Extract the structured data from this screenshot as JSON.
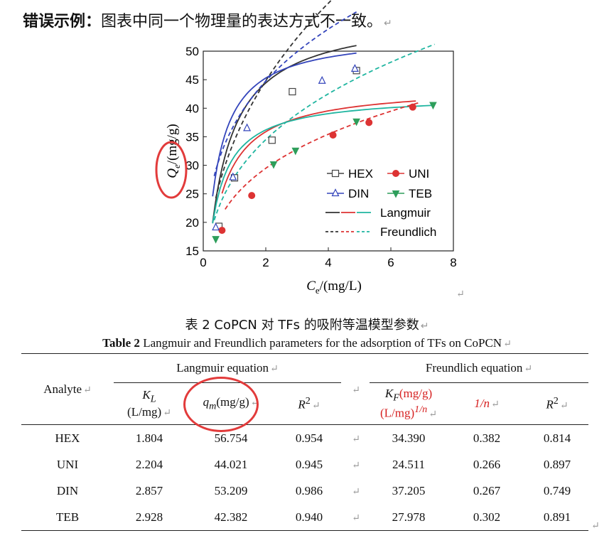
{
  "heading": {
    "bold": "错误示例：",
    "text": "图表中同一个物理量的表达方式不一致。"
  },
  "chart_data": {
    "type": "scatter",
    "xlabel_var": "C",
    "xlabel_sub": "e",
    "xlabel_unit": "/(mg/L)",
    "ylabel_var": "Q",
    "ylabel_sub": "e",
    "ylabel_unit": "/(mg/g)",
    "xlim": [
      0,
      8
    ],
    "ylim": [
      15,
      50
    ],
    "xticks": [
      0,
      2,
      4,
      6,
      8
    ],
    "yticks": [
      15,
      20,
      25,
      30,
      35,
      40,
      45,
      50
    ],
    "grid": false,
    "legend_position": "bottom-right",
    "series": [
      {
        "name": "HEX",
        "marker": "square",
        "color": "#444444",
        "x": [
          0.5,
          1.0,
          2.2,
          2.85,
          4.9
        ],
        "y": [
          19.3,
          27.8,
          34.4,
          42.9,
          46.6
        ]
      },
      {
        "name": "UNI",
        "marker": "circle",
        "color": "#dd3333",
        "x": [
          0.6,
          1.55,
          4.15,
          5.3,
          6.7
        ],
        "y": [
          18.6,
          24.7,
          35.3,
          37.5,
          40.2
        ]
      },
      {
        "name": "DIN",
        "marker": "triangle-up",
        "color": "#3344bb",
        "x": [
          0.4,
          0.95,
          1.4,
          3.8,
          4.85
        ],
        "y": [
          19.1,
          27.9,
          36.5,
          44.8,
          46.9
        ]
      },
      {
        "name": "TEB",
        "marker": "triangle-down",
        "color": "#2e9e5b",
        "x": [
          0.4,
          2.25,
          2.95,
          4.9,
          7.35
        ],
        "y": [
          17.1,
          30.2,
          32.6,
          37.7,
          40.6
        ]
      }
    ],
    "fit_legend": [
      {
        "name": "Langmuir",
        "style": "solid"
      },
      {
        "name": "Freundlich",
        "style": "dashed"
      }
    ],
    "fits": {
      "Langmuir": [
        {
          "qm": 56.754,
          "kl": 1.804,
          "color": "#333333",
          "xmin": 0.3,
          "xmax": 4.9
        },
        {
          "qm": 44.021,
          "kl": 2.204,
          "color": "#dd3333",
          "xmin": 0.6,
          "xmax": 6.8
        },
        {
          "qm": 53.209,
          "kl": 2.857,
          "color": "#3344bb",
          "xmin": 0.3,
          "xmax": 4.9
        },
        {
          "qm": 42.382,
          "kl": 2.928,
          "color": "#1fb5a0",
          "xmin": 0.3,
          "xmax": 7.4
        }
      ],
      "Freundlich": [
        {
          "kf": 34.39,
          "n_inv": 0.382,
          "color": "#333333",
          "xmin": 0.4,
          "xmax": 4.9
        },
        {
          "kf": 24.511,
          "n_inv": 0.266,
          "color": "#dd3333",
          "xmin": 0.7,
          "xmax": 6.9
        },
        {
          "kf": 37.205,
          "n_inv": 0.267,
          "color": "#3344bb",
          "xmin": 0.35,
          "xmax": 4.9
        },
        {
          "kf": 27.978,
          "n_inv": 0.302,
          "color": "#1fb5a0",
          "xmin": 0.35,
          "xmax": 7.4
        }
      ]
    }
  },
  "caption_zh": "表 2 CoPCN 对 TFs 的吸附等温模型参数",
  "caption_en": {
    "bold": "Table 2",
    "text": " Langmuir and Freundlich parameters for the adsorption of TFs on CoPCN"
  },
  "table": {
    "analyte_header": "Analyte",
    "group1": "Langmuir equation",
    "group2": "Freundlich equation",
    "kl_var": "K",
    "kl_sub": "L",
    "kl_unit": "(L/mg)",
    "qm_var": "q",
    "qm_sub": "m",
    "qm_unit": "(mg/g)",
    "r2": "R",
    "r2_sup": "2",
    "kf_var": "K",
    "kf_sub": "F",
    "kf_unit1": "(mg/g)",
    "kf_unit2": "(L/mg)",
    "kf_unit_sup": "1/n",
    "n_inv": "1/n",
    "rows": [
      {
        "analyte": "HEX",
        "kl": "1.804",
        "qm": "56.754",
        "r2l": "0.954",
        "kf": "34.390",
        "n": "0.382",
        "r2f": "0.814"
      },
      {
        "analyte": "UNI",
        "kl": "2.204",
        "qm": "44.021",
        "r2l": "0.945",
        "kf": "24.511",
        "n": "0.266",
        "r2f": "0.897"
      },
      {
        "analyte": "DIN",
        "kl": "2.857",
        "qm": "53.209",
        "r2l": "0.986",
        "kf": "37.205",
        "n": "0.267",
        "r2f": "0.749"
      },
      {
        "analyte": "TEB",
        "kl": "2.928",
        "qm": "42.382",
        "r2l": "0.940",
        "kf": "27.978",
        "n": "0.302",
        "r2f": "0.891"
      }
    ]
  }
}
